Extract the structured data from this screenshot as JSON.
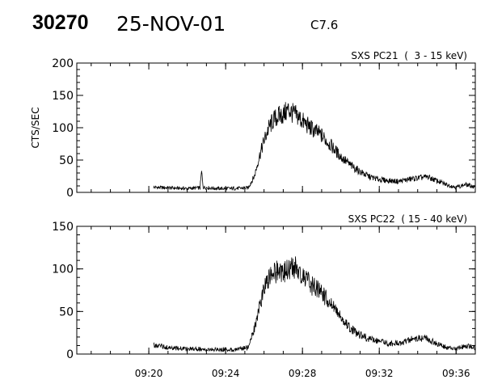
{
  "header": {
    "event_id": "30270",
    "date": "25-NOV-01",
    "flare_class": "C7.6"
  },
  "chart_data": [
    {
      "type": "line",
      "title": "SXS PC21  (  3 - 15 keV)",
      "ylabel": "CTS/SEC",
      "xlabel": "",
      "xlim": [
        "09:16:15",
        "09:37:00"
      ],
      "ylim": [
        0,
        200
      ],
      "x_ticks": [
        "09:20",
        "09:24",
        "09:28",
        "09:32",
        "09:36"
      ],
      "y_ticks": [
        0,
        50,
        100,
        150,
        200
      ],
      "grid": false,
      "data_gap": [
        "09:16:15",
        "09:20:15"
      ],
      "series": [
        {
          "x": [
            "09:20:15",
            "09:21:00",
            "09:22:00",
            "09:22:40",
            "09:22:45",
            "09:22:50",
            "09:23:30",
            "09:24:30",
            "09:25:10",
            "09:25:30",
            "09:25:45",
            "09:26:00",
            "09:26:15",
            "09:26:30",
            "09:26:45",
            "09:27:00",
            "09:27:15",
            "09:27:30",
            "09:27:45",
            "09:28:00",
            "09:28:30",
            "09:29:00",
            "09:29:30",
            "09:30:00",
            "09:30:30",
            "09:31:00",
            "09:31:30",
            "09:32:00",
            "09:32:30",
            "09:33:00",
            "09:33:30",
            "09:34:00",
            "09:34:30",
            "09:35:00",
            "09:35:30",
            "09:36:00",
            "09:36:30",
            "09:37:00"
          ],
          "values": [
            8,
            7,
            6,
            7,
            32,
            8,
            6,
            6,
            7,
            25,
            55,
            80,
            100,
            112,
            118,
            120,
            128,
            122,
            118,
            110,
            98,
            88,
            72,
            55,
            42,
            32,
            24,
            20,
            18,
            17,
            20,
            22,
            24,
            18,
            12,
            8,
            12,
            8
          ]
        }
      ]
    },
    {
      "type": "line",
      "title": "SXS PC22  ( 15 - 40 keV)",
      "ylabel": "",
      "xlabel": "",
      "xlim": [
        "09:16:15",
        "09:37:00"
      ],
      "ylim": [
        0,
        150
      ],
      "x_ticks": [
        "09:20",
        "09:24",
        "09:28",
        "09:32",
        "09:36"
      ],
      "y_ticks": [
        0,
        50,
        100,
        150
      ],
      "grid": false,
      "data_gap": [
        "09:16:15",
        "09:20:15"
      ],
      "series": [
        {
          "x": [
            "09:20:15",
            "09:21:00",
            "09:22:00",
            "09:23:00",
            "09:24:30",
            "09:25:10",
            "09:25:30",
            "09:25:45",
            "09:26:00",
            "09:26:15",
            "09:26:30",
            "09:26:45",
            "09:27:00",
            "09:27:15",
            "09:27:30",
            "09:27:45",
            "09:28:00",
            "09:28:30",
            "09:29:00",
            "09:29:30",
            "09:30:00",
            "09:30:30",
            "09:31:00",
            "09:31:30",
            "09:32:00",
            "09:32:30",
            "09:33:00",
            "09:33:30",
            "09:34:00",
            "09:34:30",
            "09:35:00",
            "09:35:30",
            "09:36:00",
            "09:36:30",
            "09:37:00"
          ],
          "values": [
            10,
            8,
            6,
            6,
            5,
            8,
            30,
            55,
            75,
            88,
            95,
            98,
            95,
            100,
            105,
            98,
            92,
            80,
            72,
            58,
            42,
            30,
            22,
            18,
            15,
            12,
            13,
            16,
            19,
            18,
            12,
            8,
            6,
            10,
            7
          ]
        }
      ]
    }
  ]
}
